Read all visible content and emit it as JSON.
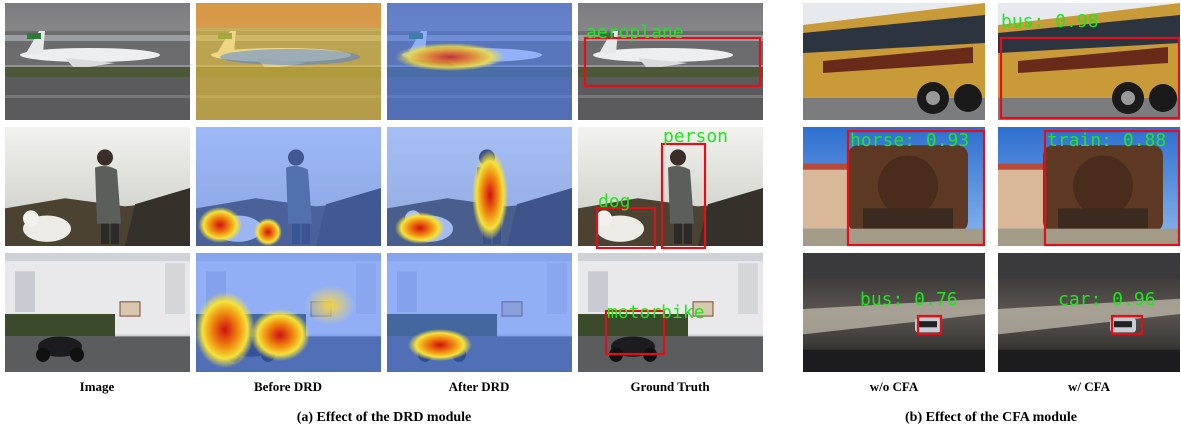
{
  "panel_a": {
    "columns": [
      "Image",
      "Before DRD",
      "After DRD",
      "Ground Truth"
    ],
    "detections": [
      "aeroplane",
      "person",
      "dog",
      "motorbike"
    ],
    "caption": "(a) Effect of the DRD module"
  },
  "panel_b": {
    "columns": [
      "w/o CFA",
      "w/ CFA"
    ],
    "without_cfa": [
      "horse: 0.93",
      "bus: 0.76"
    ],
    "with_cfa": [
      "bus: 0.98",
      "train: 0.88",
      "car: 0.96"
    ],
    "caption": "(b) Effect of the CFA module"
  }
}
